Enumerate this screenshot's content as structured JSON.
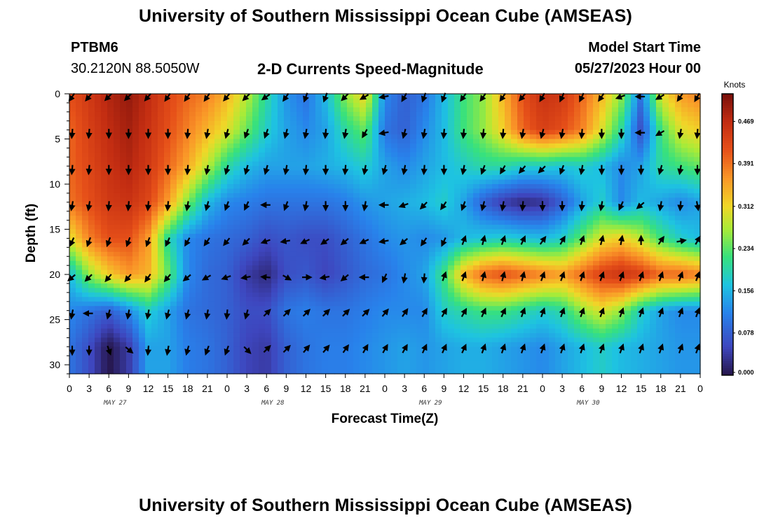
{
  "header": {
    "title": "University of Southern Mississippi Ocean Cube (AMSEAS)",
    "station_id": "PTBM6",
    "station_coords": "30.2120N  88.5050W",
    "chart_title": "2-D Currents Speed-Magnitude",
    "start_label": "Model Start Time",
    "start_value": "05/27/2023 Hour 00"
  },
  "footer": {
    "title": "University of Southern Mississippi Ocean Cube (AMSEAS)"
  },
  "chart_data": {
    "type": "heatmap",
    "title": "2-D Currents Speed-Magnitude",
    "xlabel": "Forecast Time(Z)",
    "ylabel": "Depth (ft)",
    "x_tick_labels": [
      "0",
      "3",
      "6",
      "9",
      "12",
      "15",
      "18",
      "21",
      "0",
      "3",
      "6",
      "9",
      "12",
      "15",
      "18",
      "21",
      "0",
      "3",
      "6",
      "9",
      "12",
      "15",
      "18",
      "21",
      "0",
      "3",
      "6",
      "9",
      "12",
      "15",
      "18",
      "21",
      "0"
    ],
    "x_dates": [
      {
        "label": "MAY 27",
        "hour": 6
      },
      {
        "label": "MAY 28",
        "hour": 30
      },
      {
        "label": "MAY 29",
        "hour": 54
      },
      {
        "label": "MAY 30",
        "hour": 78
      }
    ],
    "xlim_hours": [
      0,
      96
    ],
    "ylim": [
      31,
      0
    ],
    "y_ticks": [
      0,
      5,
      10,
      15,
      20,
      25,
      30
    ],
    "depths": [
      0,
      4,
      8,
      12,
      16,
      20,
      24,
      28
    ],
    "hours": [
      0,
      3,
      6,
      9,
      12,
      15,
      18,
      21,
      24,
      27,
      30,
      33,
      36,
      39,
      42,
      45,
      48,
      51,
      54,
      57,
      60,
      63,
      66,
      69,
      72,
      75,
      78,
      81,
      84,
      87,
      90,
      93,
      96
    ],
    "speed_knots": [
      [
        0.42,
        0.45,
        0.48,
        0.5,
        0.47,
        0.43,
        0.4,
        0.38,
        0.34,
        0.28,
        0.2,
        0.13,
        0.1,
        0.16,
        0.26,
        0.32,
        0.12,
        0.08,
        0.1,
        0.16,
        0.22,
        0.26,
        0.34,
        0.42,
        0.46,
        0.45,
        0.4,
        0.34,
        0.26,
        0.1,
        0.3,
        0.36,
        0.38
      ],
      [
        0.4,
        0.44,
        0.47,
        0.49,
        0.46,
        0.42,
        0.38,
        0.34,
        0.3,
        0.24,
        0.18,
        0.14,
        0.12,
        0.14,
        0.2,
        0.24,
        0.1,
        0.08,
        0.12,
        0.16,
        0.22,
        0.26,
        0.32,
        0.4,
        0.44,
        0.42,
        0.38,
        0.3,
        0.2,
        0.06,
        0.22,
        0.3,
        0.32
      ],
      [
        0.4,
        0.43,
        0.46,
        0.48,
        0.45,
        0.4,
        0.35,
        0.28,
        0.2,
        0.16,
        0.14,
        0.14,
        0.14,
        0.15,
        0.16,
        0.18,
        0.14,
        0.12,
        0.14,
        0.16,
        0.18,
        0.2,
        0.2,
        0.18,
        0.18,
        0.17,
        0.18,
        0.16,
        0.12,
        0.14,
        0.2,
        0.22,
        0.24
      ],
      [
        0.39,
        0.42,
        0.45,
        0.46,
        0.43,
        0.36,
        0.25,
        0.16,
        0.12,
        0.11,
        0.1,
        0.1,
        0.1,
        0.1,
        0.11,
        0.13,
        0.14,
        0.15,
        0.16,
        0.18,
        0.14,
        0.08,
        0.04,
        0.02,
        0.03,
        0.08,
        0.14,
        0.18,
        0.12,
        0.16,
        0.14,
        0.12,
        0.14
      ],
      [
        0.3,
        0.38,
        0.42,
        0.42,
        0.36,
        0.2,
        0.12,
        0.1,
        0.09,
        0.08,
        0.06,
        0.07,
        0.06,
        0.06,
        0.08,
        0.1,
        0.12,
        0.13,
        0.12,
        0.13,
        0.16,
        0.17,
        0.18,
        0.17,
        0.16,
        0.18,
        0.24,
        0.3,
        0.32,
        0.28,
        0.22,
        0.18,
        0.16
      ],
      [
        0.16,
        0.26,
        0.32,
        0.36,
        0.34,
        0.24,
        0.12,
        0.09,
        0.08,
        0.04,
        0.02,
        0.06,
        0.07,
        0.05,
        0.07,
        0.09,
        0.1,
        0.12,
        0.14,
        0.22,
        0.34,
        0.4,
        0.42,
        0.4,
        0.38,
        0.36,
        0.4,
        0.44,
        0.46,
        0.44,
        0.4,
        0.4,
        0.38
      ],
      [
        0.12,
        0.1,
        0.08,
        0.12,
        0.18,
        0.14,
        0.1,
        0.09,
        0.08,
        0.06,
        0.06,
        0.1,
        0.11,
        0.1,
        0.1,
        0.11,
        0.12,
        0.12,
        0.12,
        0.18,
        0.2,
        0.22,
        0.22,
        0.2,
        0.18,
        0.2,
        0.26,
        0.3,
        0.26,
        0.18,
        0.14,
        0.12,
        0.12
      ],
      [
        0.1,
        0.06,
        0.0,
        0.04,
        0.14,
        0.14,
        0.11,
        0.1,
        0.08,
        0.05,
        0.04,
        0.08,
        0.1,
        0.11,
        0.11,
        0.12,
        0.13,
        0.14,
        0.13,
        0.14,
        0.15,
        0.15,
        0.14,
        0.13,
        0.12,
        0.14,
        0.16,
        0.18,
        0.16,
        0.15,
        0.14,
        0.13,
        0.13
      ]
    ],
    "colorbar": {
      "unit": "Knots",
      "min": 0.0,
      "max": 0.52,
      "tick_labels": [
        "0.000",
        "0.078",
        "0.156",
        "0.234",
        "0.312",
        "0.391",
        "0.469"
      ],
      "tick_values": [
        0.0,
        0.078,
        0.156,
        0.234,
        0.312,
        0.391,
        0.469
      ]
    },
    "arrow_depths": [
      0,
      4,
      8,
      12,
      16,
      20,
      24,
      28
    ],
    "arrow_hours": [
      0,
      3,
      6,
      9,
      12,
      15,
      18,
      21,
      24,
      27,
      30,
      33,
      36,
      39,
      42,
      45,
      48,
      51,
      54,
      57,
      60,
      63,
      66,
      69,
      72,
      75,
      78,
      81,
      84,
      87,
      90,
      93,
      96
    ],
    "arrow_dir_deg": [
      [
        215,
        220,
        225,
        225,
        220,
        215,
        215,
        215,
        220,
        225,
        235,
        215,
        200,
        200,
        225,
        240,
        260,
        210,
        200,
        200,
        215,
        215,
        215,
        220,
        210,
        205,
        205,
        215,
        250,
        270,
        240,
        215,
        210
      ],
      [
        185,
        185,
        180,
        180,
        180,
        180,
        185,
        190,
        195,
        200,
        200,
        195,
        190,
        185,
        190,
        210,
        260,
        195,
        190,
        185,
        185,
        185,
        185,
        190,
        195,
        190,
        185,
        180,
        180,
        270,
        240,
        190,
        185
      ],
      [
        185,
        185,
        180,
        180,
        180,
        180,
        185,
        190,
        195,
        195,
        195,
        190,
        185,
        180,
        185,
        190,
        195,
        190,
        185,
        180,
        190,
        200,
        210,
        220,
        225,
        200,
        190,
        180,
        180,
        180,
        195,
        190,
        180
      ],
      [
        190,
        190,
        185,
        185,
        185,
        185,
        190,
        195,
        200,
        205,
        270,
        200,
        190,
        180,
        180,
        190,
        270,
        250,
        225,
        215,
        200,
        195,
        190,
        185,
        180,
        180,
        185,
        190,
        205,
        230,
        190,
        185,
        170
      ],
      [
        205,
        200,
        200,
        200,
        200,
        205,
        210,
        215,
        220,
        225,
        250,
        260,
        245,
        235,
        230,
        245,
        260,
        230,
        215,
        205,
        20,
        15,
        20,
        25,
        35,
        30,
        20,
        15,
        10,
        0,
        35,
        80,
        30
      ],
      [
        230,
        225,
        220,
        220,
        215,
        220,
        230,
        240,
        250,
        260,
        275,
        120,
        90,
        260,
        230,
        270,
        205,
        190,
        185,
        20,
        20,
        15,
        15,
        15,
        20,
        20,
        20,
        20,
        20,
        20,
        20,
        20,
        20
      ],
      [
        190,
        270,
        195,
        190,
        190,
        195,
        195,
        190,
        185,
        195,
        45,
        45,
        45,
        45,
        45,
        45,
        40,
        35,
        30,
        30,
        30,
        25,
        25,
        20,
        20,
        20,
        20,
        20,
        20,
        20,
        20,
        20,
        20
      ],
      [
        180,
        180,
        160,
        130,
        185,
        190,
        195,
        200,
        200,
        135,
        45,
        45,
        40,
        40,
        35,
        30,
        30,
        30,
        25,
        25,
        25,
        20,
        20,
        20,
        20,
        20,
        20,
        20,
        20,
        20,
        20,
        20,
        20
      ]
    ]
  }
}
